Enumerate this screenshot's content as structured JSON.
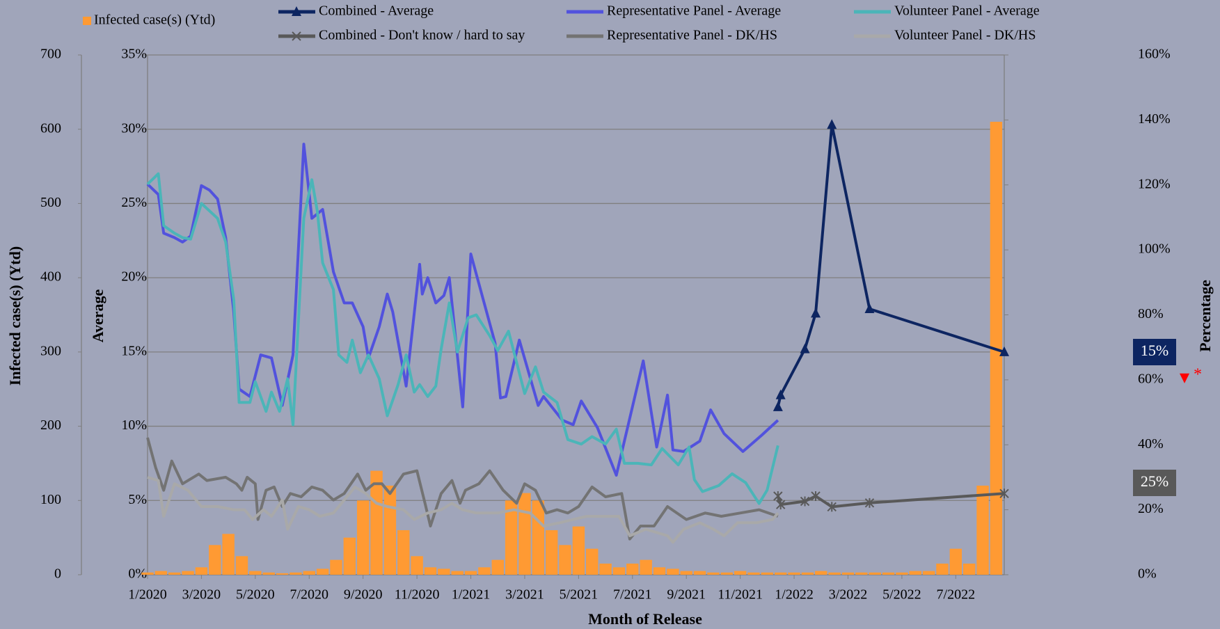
{
  "chart_data": {
    "type": "combo",
    "xlabel": "Month of Release",
    "ylabel": "Infected case(s) (Ytd)",
    "y2label": "Average",
    "y3label": "Percentage",
    "xlim": [
      0,
      31.8
    ],
    "xticks": [
      {
        "value": 0,
        "label": "1/2020"
      },
      {
        "value": 2,
        "label": "3/2020"
      },
      {
        "value": 4,
        "label": "5/2020"
      },
      {
        "value": 6,
        "label": "7/2020"
      },
      {
        "value": 8,
        "label": "9/2020"
      },
      {
        "value": 10,
        "label": "11/2020"
      },
      {
        "value": 12,
        "label": "1/2021"
      },
      {
        "value": 14,
        "label": "3/2021"
      },
      {
        "value": 16,
        "label": "5/2021"
      },
      {
        "value": 18,
        "label": "7/2021"
      },
      {
        "value": 20,
        "label": "9/2021"
      },
      {
        "value": 22,
        "label": "11/2021"
      },
      {
        "value": 24,
        "label": "1/2022"
      },
      {
        "value": 26,
        "label": "3/2022"
      },
      {
        "value": 28,
        "label": "5/2022"
      },
      {
        "value": 30,
        "label": "7/2022"
      }
    ],
    "ylim": [
      0,
      700
    ],
    "yticks": [
      0,
      100,
      200,
      300,
      400,
      500,
      600,
      700
    ],
    "y2lim": [
      0,
      35
    ],
    "y2ticks": [
      {
        "value": 0,
        "label": "0%"
      },
      {
        "value": 5,
        "label": "5%"
      },
      {
        "value": 10,
        "label": "10%"
      },
      {
        "value": 15,
        "label": "15%"
      },
      {
        "value": 20,
        "label": "20%"
      },
      {
        "value": 25,
        "label": "25%"
      },
      {
        "value": 30,
        "label": "30%"
      },
      {
        "value": 35,
        "label": "35%"
      }
    ],
    "y3lim": [
      0,
      160
    ],
    "y3ticks": [
      {
        "value": 0,
        "label": "0%"
      },
      {
        "value": 20,
        "label": "20%"
      },
      {
        "value": 40,
        "label": "40%"
      },
      {
        "value": 60,
        "label": "60%"
      },
      {
        "value": 80,
        "label": "80%"
      },
      {
        "value": 100,
        "label": "100%"
      },
      {
        "value": 120,
        "label": "120%"
      },
      {
        "value": 140,
        "label": "140%"
      },
      {
        "value": 160,
        "label": "160%"
      }
    ],
    "grid": true,
    "series": [
      {
        "name": "Infected case(s) (Ytd)",
        "type": "bar",
        "axis": "y",
        "color": "#ff9a33",
        "x": [
          0,
          0.5,
          1,
          1.5,
          2,
          2.5,
          3,
          3.5,
          4,
          4.5,
          5,
          5.5,
          6,
          6.5,
          7,
          7.5,
          8,
          8.5,
          9,
          9.5,
          10,
          10.5,
          11,
          11.5,
          12,
          12.5,
          13,
          13.5,
          14,
          14.5,
          15,
          15.5,
          16,
          16.5,
          17,
          17.5,
          18,
          18.5,
          19,
          19.5,
          20,
          20.5,
          21,
          21.5,
          22,
          22.5,
          23,
          23.5,
          24,
          24.5,
          25,
          25.5,
          26,
          26.5,
          27,
          27.5,
          28,
          28.5,
          29,
          29.5,
          30,
          30.5,
          31,
          31.5
        ],
        "values": [
          3,
          5,
          3,
          5,
          10,
          40,
          55,
          25,
          5,
          3,
          2,
          3,
          5,
          8,
          20,
          50,
          100,
          140,
          120,
          60,
          25,
          10,
          8,
          5,
          5,
          10,
          20,
          100,
          110,
          100,
          60,
          40,
          65,
          35,
          15,
          10,
          15,
          20,
          10,
          8,
          5,
          5,
          3,
          3,
          5,
          3,
          3,
          3,
          3,
          3,
          5,
          3,
          3,
          3,
          3,
          3,
          3,
          5,
          5,
          15,
          35,
          15,
          120,
          610
        ]
      },
      {
        "name": "Combined - Average",
        "type": "line",
        "axis": "y2",
        "color": "#0d2561",
        "marker": "triangle",
        "x": [
          23.4,
          23.5,
          24.4,
          24.8,
          25.4,
          26.8,
          31.8
        ],
        "values": [
          11.3,
          12.1,
          15.2,
          17.6,
          30.3,
          17.9,
          15
        ]
      },
      {
        "name": "Representative Panel - Average",
        "type": "line",
        "axis": "y2",
        "color": "#5252dd",
        "x": [
          0,
          0.4,
          0.6,
          1.0,
          1.3,
          1.6,
          2.0,
          2.3,
          2.6,
          2.9,
          3.2,
          3.4,
          3.8,
          4.2,
          4.6,
          5.0,
          5.4,
          5.8,
          6.1,
          6.5,
          6.9,
          7.3,
          7.6,
          8.0,
          8.2,
          8.6,
          8.9,
          9.1,
          9.6,
          10.1,
          10.2,
          10.4,
          10.7,
          11.0,
          11.2,
          11.7,
          12.0,
          12.9,
          13.1,
          13.3,
          13.8,
          14.5,
          14.7,
          15.4,
          15.8,
          16.1,
          16.7,
          17.4,
          18.4,
          18.9,
          19.3,
          19.5,
          19.9,
          20.5,
          20.9,
          21.4,
          22.1,
          22.8,
          23.4
        ],
        "values": [
          26.3,
          25.6,
          23,
          22.7,
          22.4,
          22.8,
          26.2,
          25.9,
          25.3,
          22.7,
          17.7,
          12.5,
          12,
          14.8,
          14.6,
          11.4,
          14.8,
          29,
          24,
          24.6,
          20.4,
          18.3,
          18.3,
          16.7,
          14.6,
          16.7,
          18.9,
          17.7,
          12.7,
          20.9,
          18.9,
          20,
          18.3,
          18.8,
          20,
          11.3,
          21.6,
          15.6,
          11.9,
          12,
          15.8,
          11.4,
          12,
          10.4,
          10.1,
          11.7,
          9.9,
          6.7,
          14.4,
          8.6,
          12.1,
          8.4,
          8.3,
          9,
          11.1,
          9.5,
          8.3,
          9.4,
          10.4
        ]
      },
      {
        "name": "Volunteer Panel - Average",
        "type": "line",
        "axis": "y2",
        "color": "#4bb5b8",
        "x": [
          0,
          0.4,
          0.6,
          1.0,
          1.3,
          1.6,
          2.0,
          2.6,
          2.9,
          3.2,
          3.4,
          3.8,
          4.0,
          4.4,
          4.6,
          4.9,
          5.2,
          5.4,
          5.8,
          6.1,
          6.3,
          6.5,
          6.9,
          7.1,
          7.4,
          7.6,
          7.9,
          8.2,
          8.6,
          8.9,
          9.3,
          9.6,
          9.9,
          10.1,
          10.4,
          10.7,
          10.9,
          11.2,
          11.5,
          11.9,
          12.2,
          12.7,
          13.0,
          13.4,
          14.0,
          14.4,
          14.7,
          15.2,
          15.6,
          16.1,
          16.5,
          17.0,
          17.4,
          17.7,
          18.2,
          18.7,
          19.1,
          19.7,
          20.1,
          20.3,
          20.6,
          21.2,
          21.7,
          22.2,
          22.7,
          23.0,
          23.4
        ],
        "values": [
          26.3,
          27,
          23.5,
          23,
          22.7,
          22.6,
          25,
          24,
          22.4,
          18.5,
          11.6,
          11.6,
          13,
          11,
          12.3,
          11,
          13.2,
          10.1,
          24,
          26.6,
          24.5,
          21,
          19.2,
          14.8,
          14.3,
          15.8,
          13.6,
          14.8,
          13.2,
          10.7,
          12.8,
          14.8,
          12.3,
          12.8,
          12,
          12.7,
          15.2,
          18.3,
          15,
          17.3,
          17.5,
          16.1,
          15.1,
          16.4,
          12.2,
          14,
          12.3,
          11.6,
          9.1,
          8.8,
          9.3,
          8.8,
          9.8,
          7.5,
          7.5,
          7.4,
          8.5,
          7.4,
          8.6,
          6.4,
          5.6,
          6,
          6.8,
          6.2,
          4.8,
          5.7,
          8.7
        ]
      },
      {
        "name": "Combined - Don't know / hard to say",
        "type": "line",
        "axis": "y3",
        "color": "#595959",
        "marker": "star",
        "x": [
          23.4,
          23.5,
          24.4,
          24.8,
          25.4,
          26.8,
          31.8
        ],
        "values": [
          24.2,
          21.6,
          22.6,
          24.2,
          20.9,
          22.1,
          25
        ]
      },
      {
        "name": "Representative Panel - DK/HS",
        "type": "line",
        "axis": "y3",
        "color": "#737373",
        "x": [
          0,
          0.3,
          0.6,
          0.9,
          1.3,
          1.9,
          2.2,
          2.9,
          3.3,
          3.5,
          3.7,
          4.0,
          4.1,
          4.4,
          4.7,
          5.0,
          5.3,
          5.7,
          6.1,
          6.5,
          6.9,
          7.3,
          7.8,
          8.1,
          8.4,
          8.7,
          9.0,
          9.5,
          10.0,
          10.3,
          10.5,
          10.9,
          11.3,
          11.6,
          11.8,
          12.3,
          12.7,
          13.2,
          13.7,
          14.0,
          14.4,
          14.8,
          15.2,
          15.6,
          16.0,
          16.5,
          17.0,
          17.6,
          17.9,
          18.3,
          18.8,
          19.3,
          20.0,
          20.7,
          21.3,
          22.0,
          22.7,
          23.4
        ],
        "values": [
          42.2,
          33,
          26,
          35,
          28,
          31,
          29,
          30,
          28,
          26,
          30,
          28,
          17,
          26,
          27,
          21,
          25,
          24,
          27,
          26,
          23,
          25,
          31,
          26,
          28,
          28,
          25,
          31,
          32,
          22,
          15,
          25,
          29,
          22,
          26,
          28,
          32,
          26,
          22,
          28,
          26,
          19,
          20,
          19,
          21,
          27,
          24,
          25,
          11,
          15,
          15,
          21,
          17,
          19,
          18,
          19,
          20,
          18
        ]
      },
      {
        "name": "Volunteer Panel - DK/HS",
        "type": "line",
        "axis": "y3",
        "color": "#a9a9a9",
        "x": [
          0,
          0.4,
          0.6,
          1.0,
          1.5,
          2.0,
          2.6,
          3.2,
          3.6,
          3.9,
          4.3,
          4.6,
          5.0,
          5.2,
          5.6,
          6.0,
          6.4,
          6.9,
          7.3,
          7.7,
          8.1,
          8.5,
          8.9,
          9.5,
          9.9,
          10.4,
          10.9,
          11.3,
          11.7,
          12.2,
          13.0,
          13.6,
          14.2,
          14.7,
          15.3,
          15.8,
          16.3,
          17.0,
          17.5,
          17.9,
          18.5,
          18.9,
          19.3,
          19.5,
          19.9,
          20.5,
          21.0,
          21.4,
          21.9,
          22.6,
          23.2,
          23.4
        ],
        "values": [
          30,
          29,
          18,
          28,
          26,
          21,
          21,
          20,
          20,
          17,
          20,
          18,
          23,
          14,
          21,
          20,
          18,
          19,
          23,
          27,
          25,
          22,
          21,
          20,
          17,
          19,
          20,
          22,
          20,
          19,
          19,
          20,
          19,
          15,
          16,
          17,
          18,
          18,
          18,
          12,
          14,
          13,
          12,
          10,
          14,
          16,
          14,
          12,
          16,
          16,
          17,
          19
        ]
      }
    ],
    "annotations": [
      {
        "text": "15%",
        "background": "#0d2561"
      },
      {
        "text": "25%",
        "background": "#595959"
      },
      {
        "text": "▼",
        "color": "#ff0000"
      },
      {
        "text": "*",
        "color": "#ff0000"
      }
    ]
  }
}
